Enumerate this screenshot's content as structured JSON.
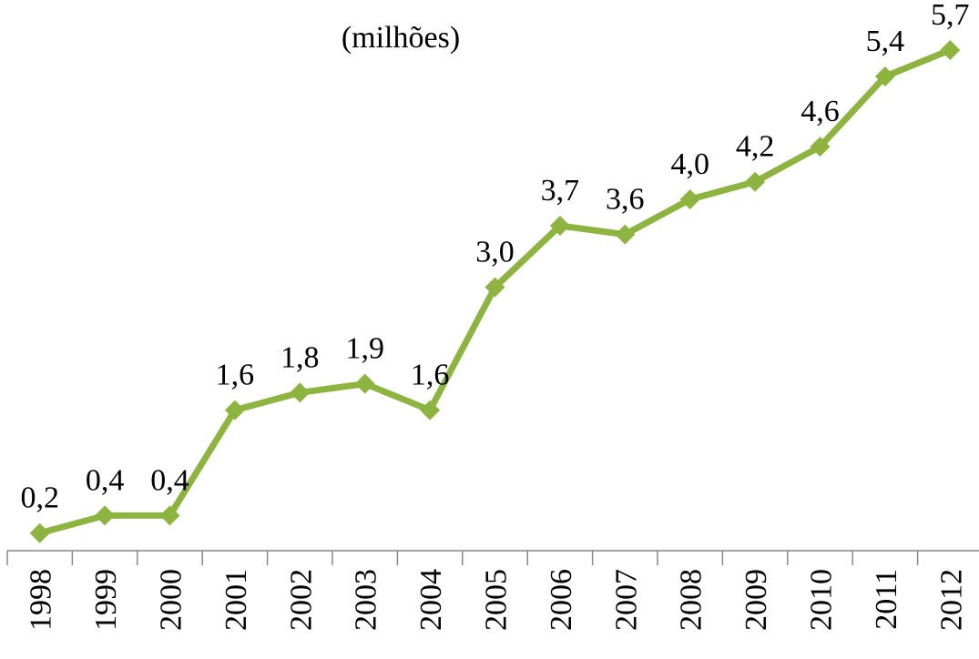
{
  "chart_data": {
    "type": "line",
    "title": "(milhões)",
    "categories": [
      "1998",
      "1999",
      "2000",
      "2001",
      "2002",
      "2003",
      "2004",
      "2005",
      "2006",
      "2007",
      "2008",
      "2009",
      "2010",
      "2011",
      "2012"
    ],
    "series": [
      {
        "name": null,
        "color": "#8db43e",
        "values": [
          0.2,
          0.4,
          0.4,
          1.6,
          1.8,
          1.9,
          1.6,
          3.0,
          3.7,
          3.6,
          4.0,
          4.2,
          4.6,
          5.4,
          5.7
        ],
        "value_labels": [
          "0,2",
          "0,4",
          "0,4",
          "1,6",
          "1,8",
          "1,9",
          "1,6",
          "3,0",
          "3,7",
          "3,6",
          "4,0",
          "4,2",
          "4,6",
          "5,4",
          "5,7"
        ]
      }
    ]
  }
}
